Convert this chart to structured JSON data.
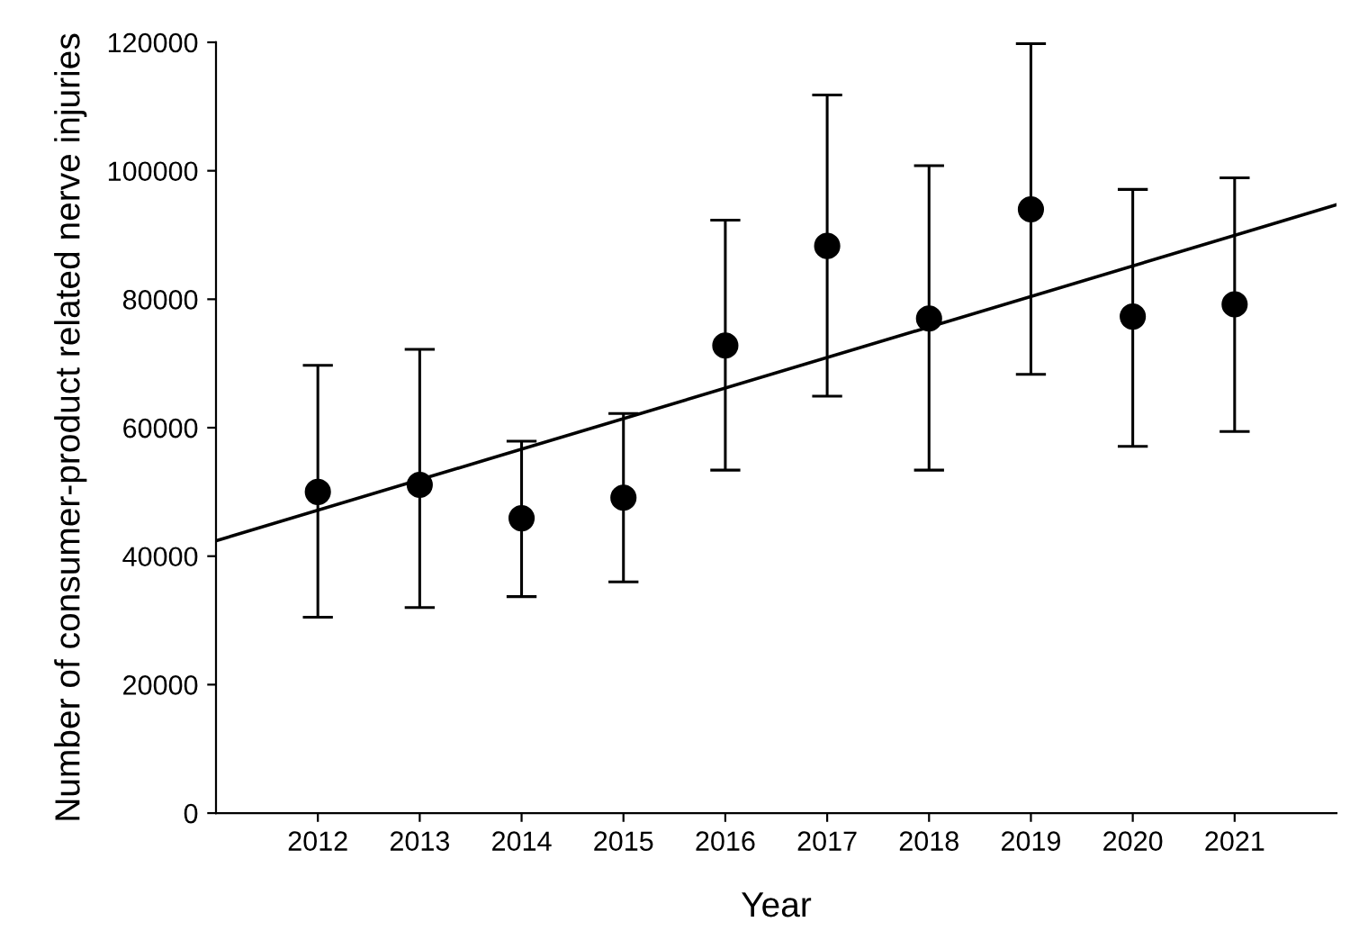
{
  "chart_data": {
    "type": "scatter",
    "xlabel": "Year",
    "ylabel": "Number of consumer-product related nerve injuries",
    "xlim": [
      2011,
      2022
    ],
    "xticks": [
      2012,
      2013,
      2014,
      2015,
      2016,
      2017,
      2018,
      2019,
      2020,
      2021
    ],
    "ylim": [
      0,
      120000
    ],
    "yticks": [
      0,
      20000,
      40000,
      60000,
      80000,
      100000,
      120000
    ],
    "grid": false,
    "legend": false,
    "marker": "circle",
    "series": [
      {
        "color": "#000000",
        "x": [
          2012,
          2013,
          2014,
          2015,
          2016,
          2017,
          2018,
          2019,
          2020,
          2021
        ],
        "values": [
          50000,
          51100,
          45900,
          49100,
          72800,
          88300,
          77000,
          94000,
          77300,
          79200
        ],
        "errors": [
          [
            30500,
            69700
          ],
          [
            32000,
            72200
          ],
          [
            33700,
            57900
          ],
          [
            36000,
            62200
          ],
          [
            53400,
            92300
          ],
          [
            64900,
            111800
          ],
          [
            53400,
            100800
          ],
          [
            68300,
            119800
          ],
          [
            57100,
            97100
          ],
          [
            59400,
            98900
          ]
        ]
      },
      {
        "type": "line",
        "color": "#000000",
        "x": [
          2011,
          2022
        ],
        "values": [
          42400,
          94700
        ],
        "marker": "none",
        "line_style": "solid"
      }
    ]
  }
}
